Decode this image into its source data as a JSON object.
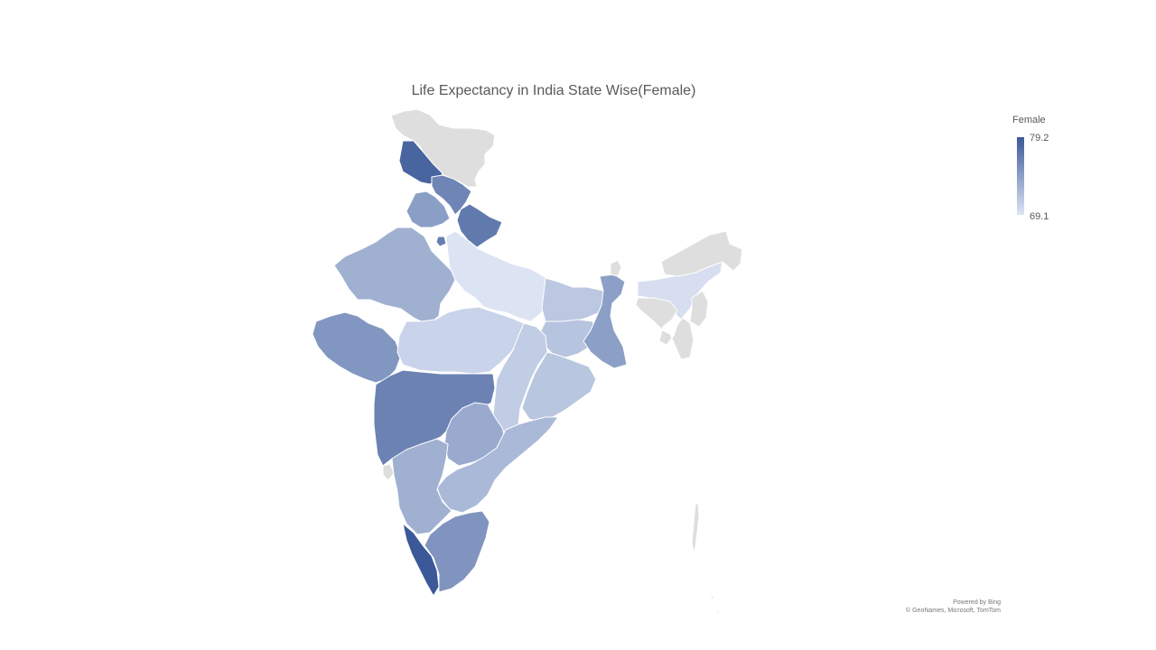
{
  "chart_data": {
    "type": "choropleth",
    "title": "Life Expectancy in India State Wise(Female)",
    "legend": {
      "title": "Female",
      "max_label": "79.2",
      "min_label": "69.1",
      "min": 69.1,
      "max": 79.2,
      "color_min": "#dce4f4",
      "color_max": "#3b5998",
      "placement": "top-right"
    },
    "no_data_color": "#dedede",
    "regions": [
      {
        "name": "Jammu and Kashmir",
        "value": null
      },
      {
        "name": "Himachal Pradesh",
        "value": 78.3
      },
      {
        "name": "Punjab",
        "value": 76.0
      },
      {
        "name": "Uttarakhand",
        "value": 76.8
      },
      {
        "name": "Haryana",
        "value": 74.2
      },
      {
        "name": "Delhi",
        "value": 76.5
      },
      {
        "name": "Rajasthan",
        "value": 72.9
      },
      {
        "name": "Uttar Pradesh",
        "value": 69.1
      },
      {
        "name": "Bihar",
        "value": 71.1
      },
      {
        "name": "Gujarat",
        "value": 74.8
      },
      {
        "name": "Madhya Pradesh",
        "value": 70.3
      },
      {
        "name": "Jharkhand",
        "value": 71.4
      },
      {
        "name": "West Bengal",
        "value": 74.1
      },
      {
        "name": "Chhattisgarh",
        "value": 70.8
      },
      {
        "name": "Odisha",
        "value": 71.3
      },
      {
        "name": "Maharashtra",
        "value": 76.2
      },
      {
        "name": "Telangana",
        "value": 73.3
      },
      {
        "name": "Andhra Pradesh",
        "value": 72.2
      },
      {
        "name": "Karnataka",
        "value": 72.9
      },
      {
        "name": "Goa",
        "value": null
      },
      {
        "name": "Kerala",
        "value": 79.2
      },
      {
        "name": "Tamil Nadu",
        "value": 74.9
      },
      {
        "name": "Assam",
        "value": 69.5
      },
      {
        "name": "Sikkim",
        "value": null
      },
      {
        "name": "Northeast States",
        "value": null
      },
      {
        "name": "Andaman and Nicobar Islands",
        "value": null
      }
    ]
  },
  "attribution": {
    "line1": "Powered by Bing",
    "line2": "© GeoNames, Microsoft, TomTom"
  }
}
